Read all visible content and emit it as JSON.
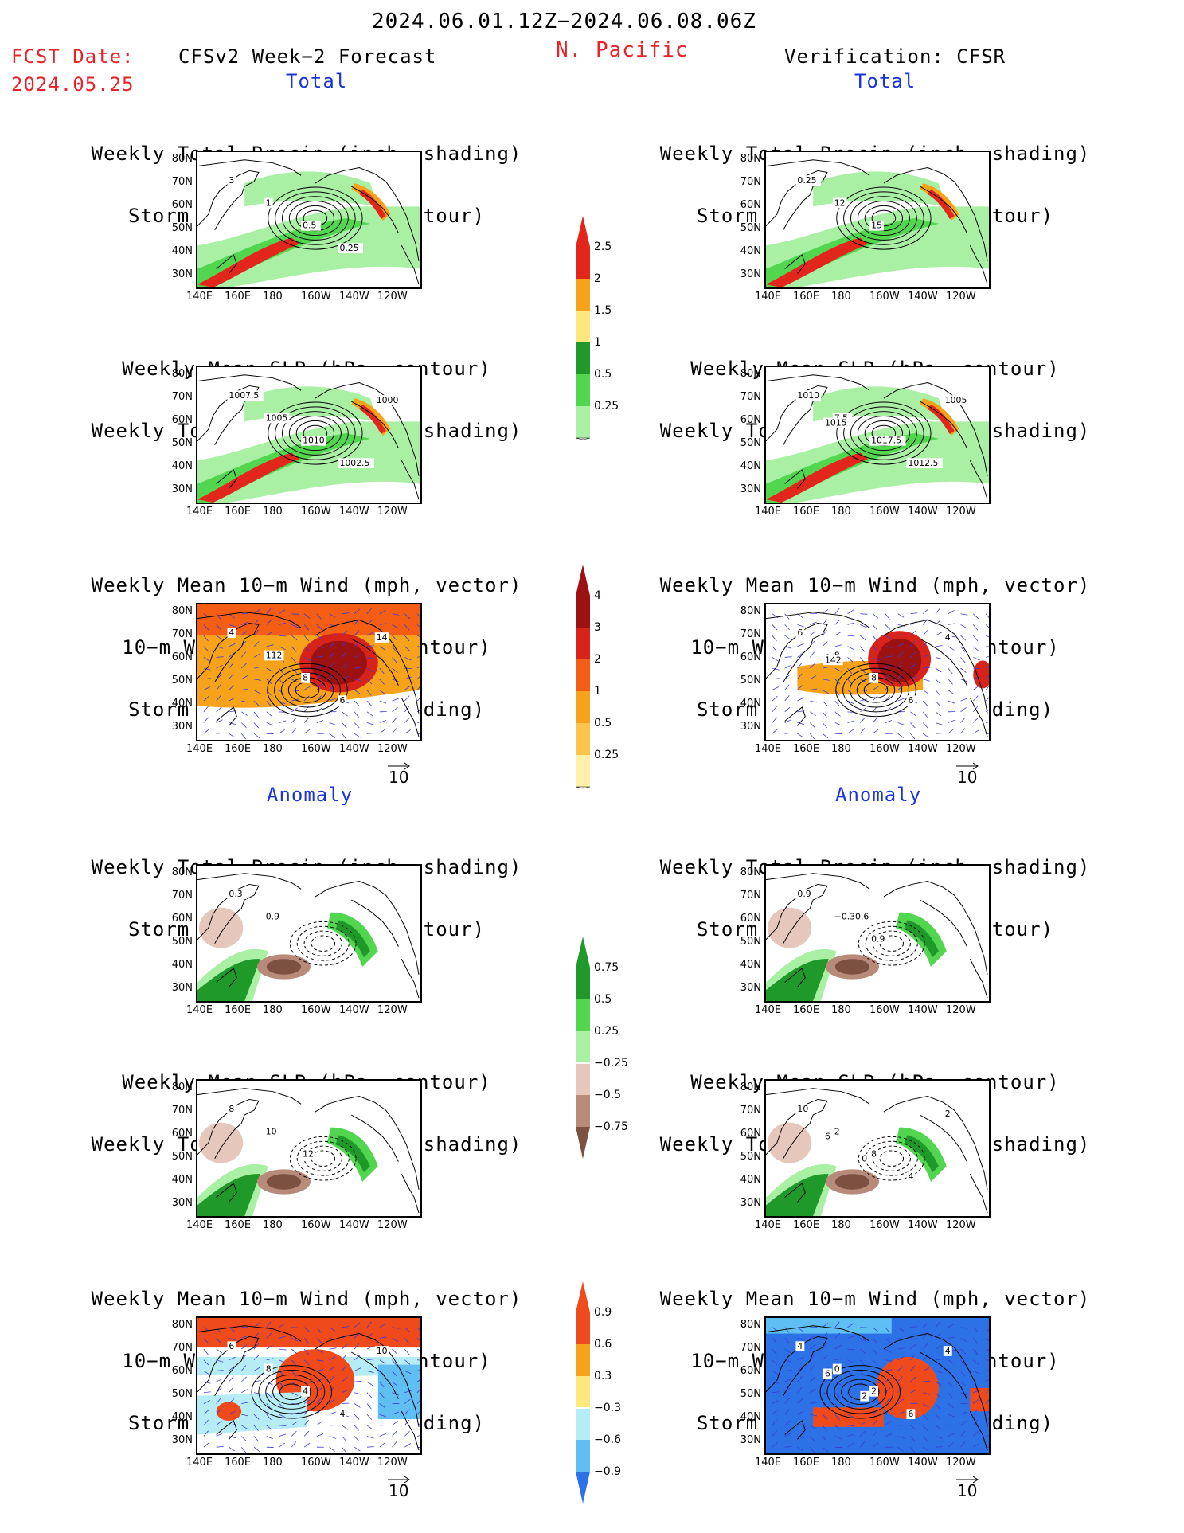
{
  "header": {
    "period": "2024.06.01.12Z−2024.06.08.06Z",
    "region": "N. Pacific",
    "fcst_label": "FCST Date:",
    "fcst_date": "2024.05.25",
    "forecast_title": "CFSv2 Week−2 Forecast",
    "verification_title": "Verification: CFSR"
  },
  "sections": {
    "total": "Total",
    "anomaly": "Anomaly"
  },
  "panel_titles": {
    "precip_storm": [
      "Weekly Total Precip (inch, shading)",
      "Storm Track Density (contour)"
    ],
    "slp_precip": [
      "Weekly Mean SLP (hPa, contour)",
      "Weekly Total Precip (inch, shading)"
    ],
    "wind_storm": [
      "Weekly Mean 10−m Wind (mph, vector)",
      "10−m Wind Speed (mph, contour)",
      "Storm Track Density (shading)"
    ]
  },
  "axes": {
    "lat_labels": [
      "80N",
      "70N",
      "60N",
      "50N",
      "40N",
      "30N"
    ],
    "lon_labels": [
      "140E",
      "160E",
      "180",
      "160W",
      "140W",
      "120W"
    ]
  },
  "vector_ref": "10",
  "colorbars": {
    "total_precip": {
      "labels": [
        "2.5",
        "2",
        "1.5",
        "1",
        "0.5",
        "0.25"
      ],
      "colors": [
        "#e3261c",
        "#f7a21b",
        "#fde87d",
        "#1f9a2a",
        "#52d64f",
        "#aaf0a4"
      ]
    },
    "total_storm": {
      "labels": [
        "4",
        "3",
        "2",
        "1",
        "0.5",
        "0.25"
      ],
      "colors": [
        "#9c1112",
        "#d8231a",
        "#f35d14",
        "#f7a21b",
        "#fcc44a",
        "#fff2a8"
      ]
    },
    "anom_precip": {
      "labels": [
        "0.75",
        "0.5",
        "0.25",
        "−0.25",
        "−0.5",
        "−0.75"
      ],
      "colors": [
        "#1f9a2a",
        "#52d64f",
        "#aaf0a4",
        "#e6c7bc",
        "#b88a7a",
        "#7c5142"
      ]
    },
    "anom_storm": {
      "labels": [
        "0.9",
        "0.6",
        "0.3",
        "−0.3",
        "−0.6",
        "−0.9"
      ],
      "colors": [
        "#ef4a1c",
        "#f7a21b",
        "#fde87d",
        "#b6ecf6",
        "#5fbff3",
        "#2c72e6"
      ]
    }
  },
  "panel_labels": {
    "fc_precip_storm": [
      "3",
      "1",
      "0.5",
      "0.25"
    ],
    "ver_precip_storm": [
      "0.25",
      "12",
      "15"
    ],
    "fc_slp": [
      "1007.5",
      "1005",
      "1010",
      "1002.5",
      "1000"
    ],
    "ver_slp": [
      "1010",
      "7.5",
      "1017.5",
      "1012.5",
      "1005",
      "1015"
    ],
    "fc_wind": [
      "4",
      "112",
      "8",
      "6",
      "14"
    ],
    "ver_wind": [
      "6",
      "8",
      "8",
      "6",
      "4",
      "142"
    ],
    "fc_anom_precip_storm": [
      "0.3",
      "0.9"
    ],
    "ver_anom_precip_storm": [
      "0.9",
      "−0.30.6",
      "0.9"
    ],
    "fc_anom_slp": [
      "8",
      "10",
      "12"
    ],
    "ver_anom_slp": [
      "10",
      "2",
      "8",
      "4",
      "2",
      "6",
      "0"
    ],
    "fc_anom_wind": [
      "6",
      "8",
      "4",
      "4",
      "10"
    ],
    "ver_anom_wind": [
      "4",
      "0",
      "2",
      "6",
      "4",
      "6",
      "2"
    ]
  }
}
